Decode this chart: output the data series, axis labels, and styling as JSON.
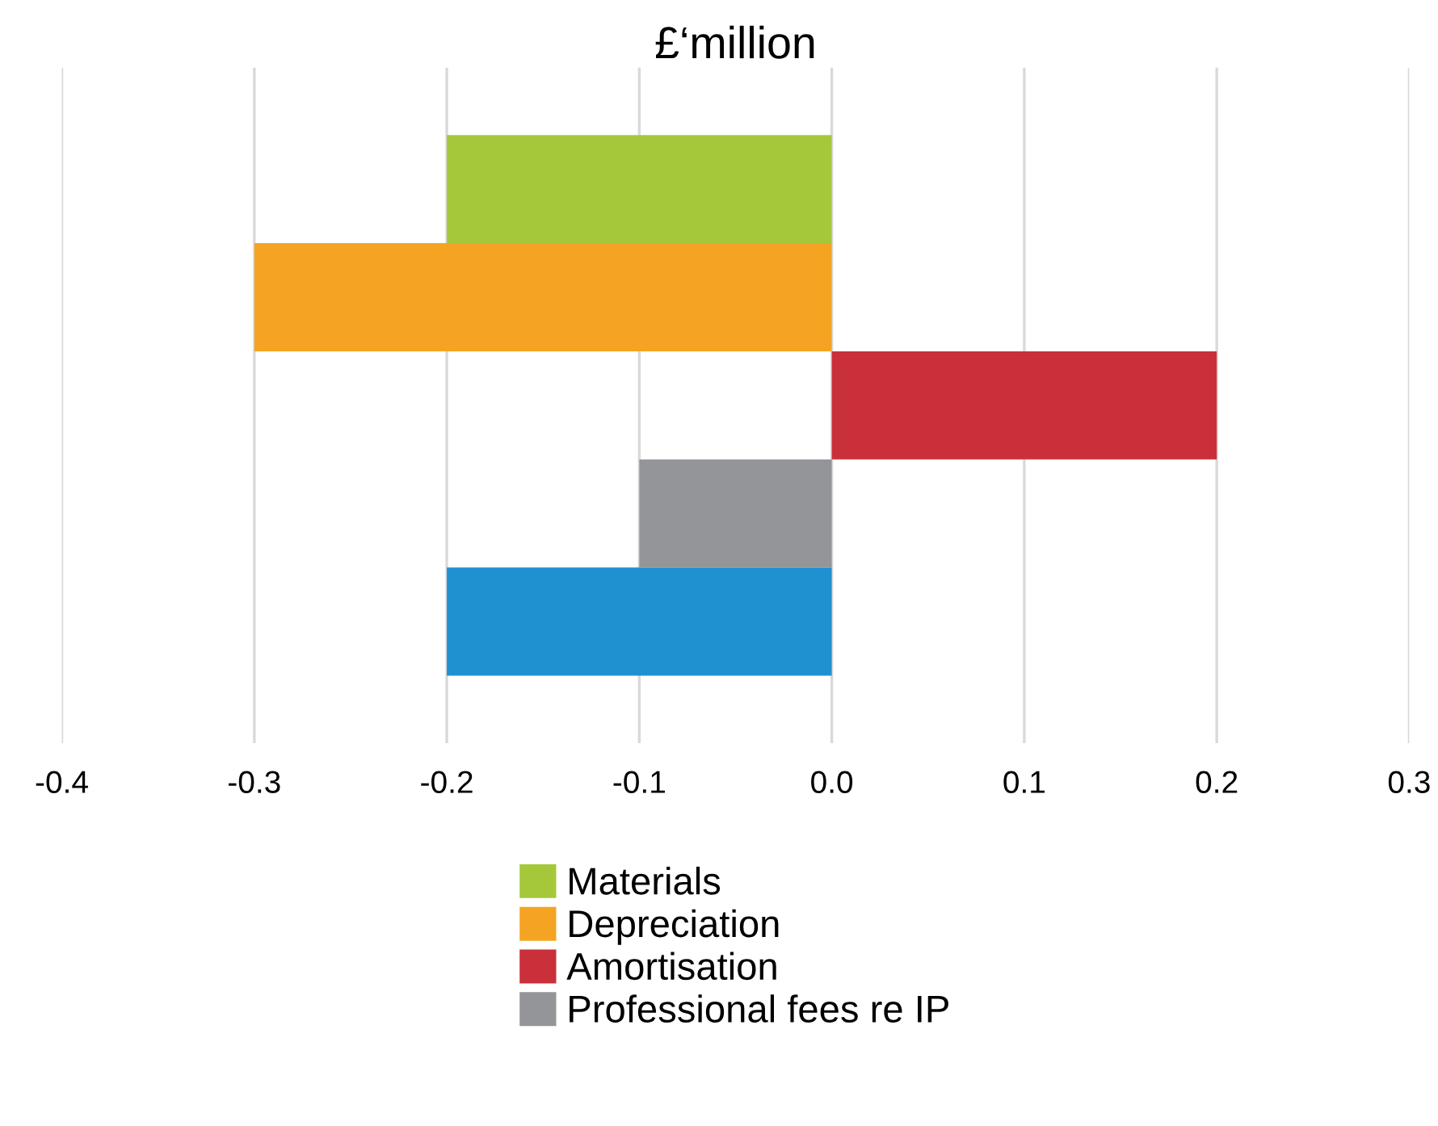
{
  "chart_data": {
    "type": "bar",
    "orientation": "horizontal",
    "title": "£‘million",
    "categories": [
      null
    ],
    "series": [
      {
        "name": "Materials",
        "color": "#a5c83a",
        "values": [
          -0.2
        ]
      },
      {
        "name": "Depreciation",
        "color": "#f4a422",
        "values": [
          -0.3
        ]
      },
      {
        "name": "Amortisation",
        "color": "#c9303a",
        "values": [
          0.2
        ]
      },
      {
        "name": "Professional fees re IP",
        "color": "#939598",
        "values": [
          -0.1
        ]
      },
      {
        "color": "#1f91d0",
        "values": [
          -0.2
        ]
      }
    ],
    "xlim": [
      -0.4,
      0.3
    ],
    "xticks": [
      -0.4,
      -0.3,
      -0.2,
      -0.1,
      {
        "value": 0,
        "label": "0.0"
      },
      0.1,
      0.2,
      0.3
    ],
    "grid": "x",
    "legend": "bottom"
  }
}
